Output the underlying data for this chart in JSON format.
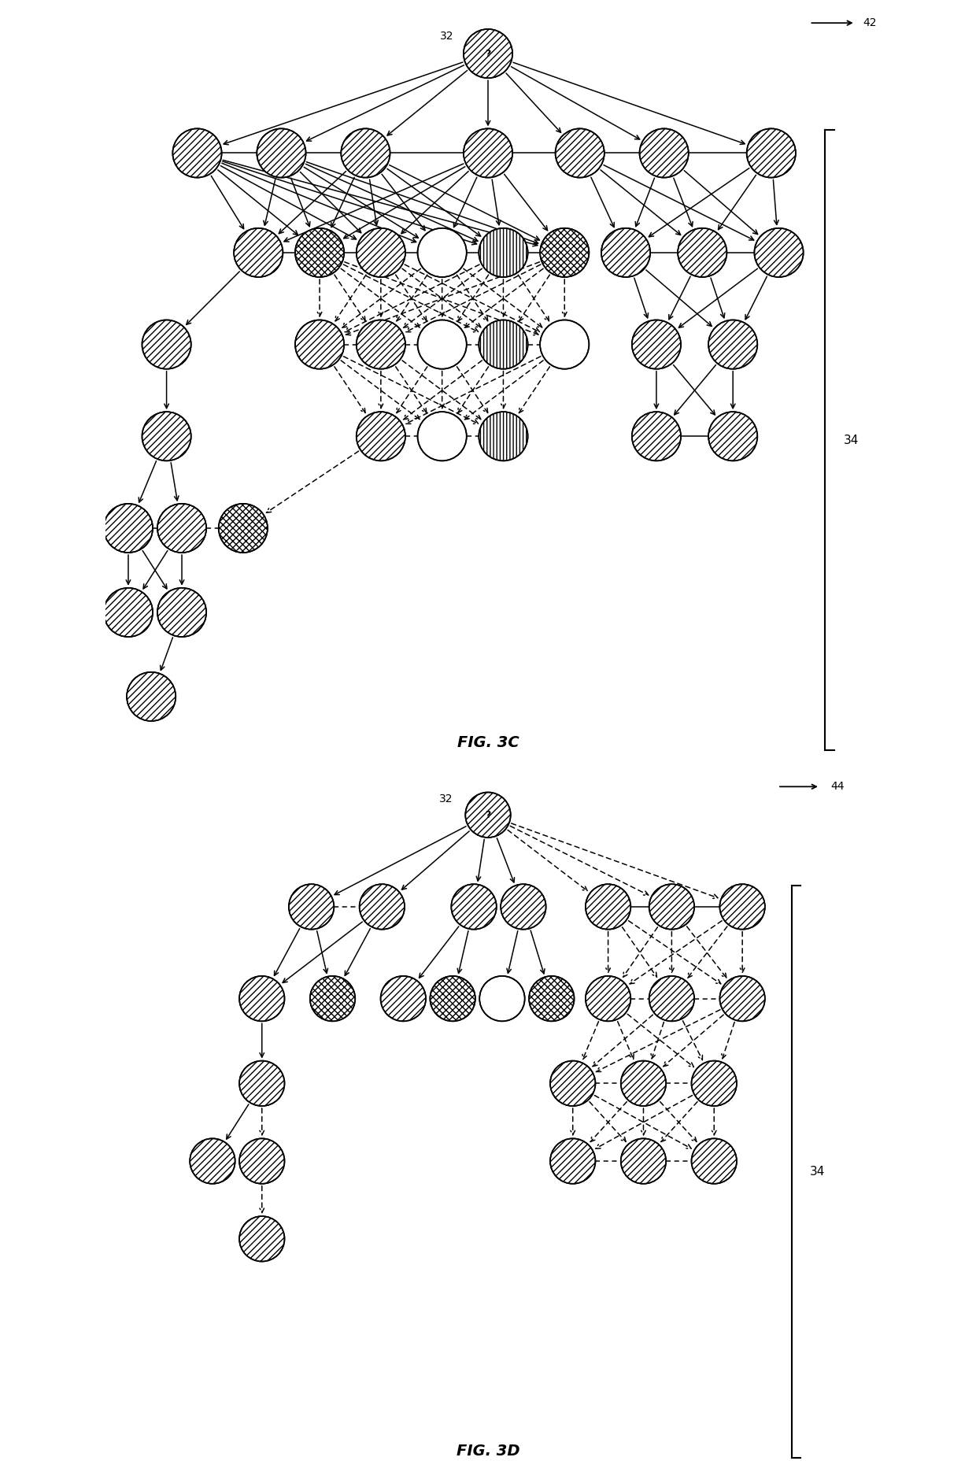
{
  "fig_width": 12.4,
  "fig_height": 18.7,
  "bg_color": "#ffffff",
  "label_32": "32",
  "label_34": "34",
  "label_42": "42",
  "label_44": "44",
  "fig3c_title": "FIG. 3C",
  "fig3d_title": "FIG. 3D"
}
